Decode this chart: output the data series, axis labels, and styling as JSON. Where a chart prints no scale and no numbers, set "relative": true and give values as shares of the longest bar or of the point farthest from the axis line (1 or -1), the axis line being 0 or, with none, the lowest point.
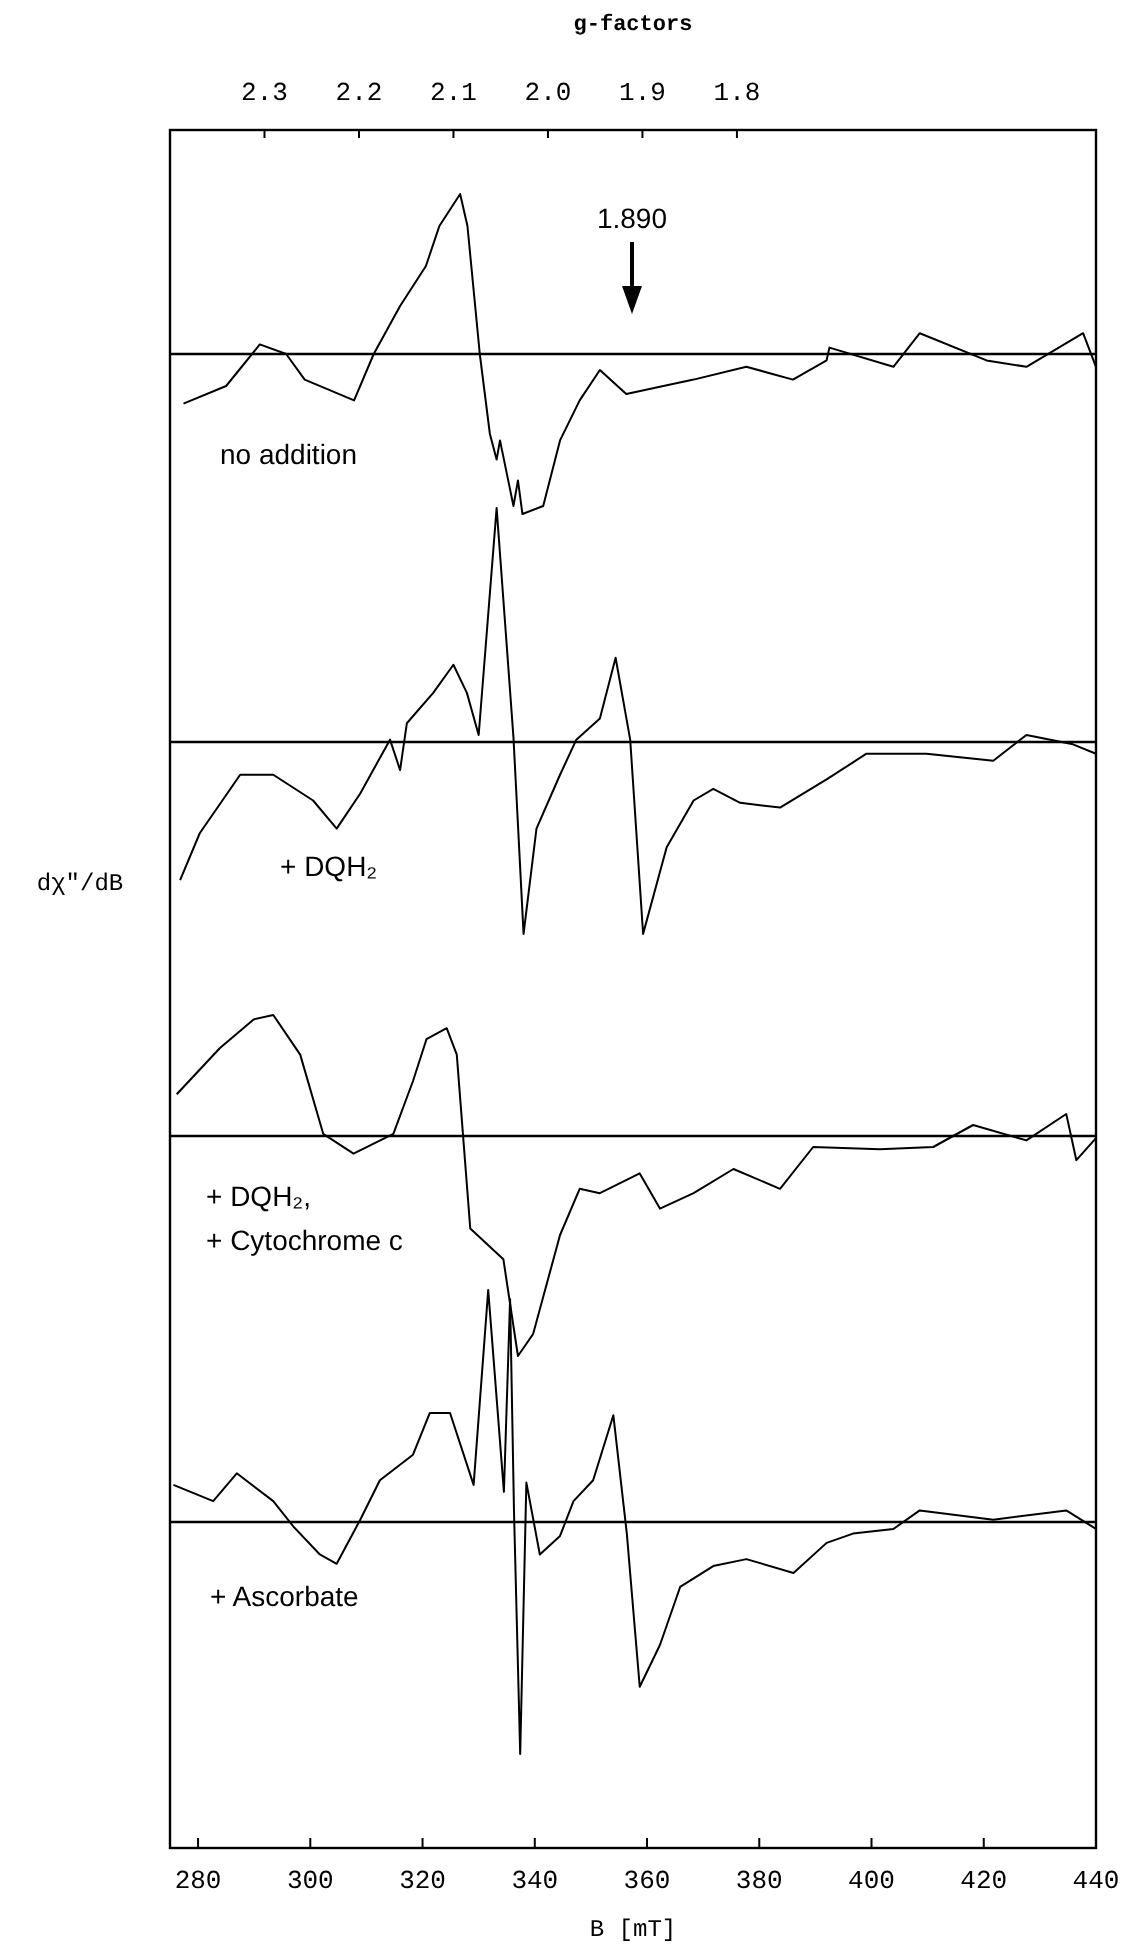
{
  "chart_data": [
    {
      "type": "line",
      "relative": true,
      "x2label": "g-factors",
      "x2lim": [
        2.4,
        1.42
      ],
      "x2ticks": [
        2.3,
        2.2,
        2.1,
        {
          "value": 2,
          "label": "2.0"
        },
        1.9,
        1.8
      ],
      "xlim": [
        275,
        440
      ],
      "tick_labels": "x",
      "annotations": [
        "1.890"
      ],
      "ref_lines": [
        {
          "axis": "y",
          "value": 0
        }
      ],
      "x": [
        277.4,
        285,
        291,
        295.7,
        299,
        307.8,
        311.3,
        316,
        320.6,
        323,
        326.7,
        328,
        330.2,
        332,
        333.2,
        333.8,
        336.2,
        337,
        337.8,
        341.5,
        344.5,
        348,
        351.6,
        356.3,
        368.3,
        377.7,
        386,
        392,
        392.5,
        403.9,
        408.6,
        420.5,
        427.6,
        437.7,
        440
      ],
      "series": [
        {
          "name": "no addition",
          "color": "#000000",
          "values": [
            -0.31,
            -0.2,
            0.06,
            0,
            -0.16,
            -0.29,
            0,
            0.3,
            0.55,
            0.8,
            1,
            0.8,
            0,
            -0.5,
            -0.66,
            -0.54,
            -0.95,
            -0.79,
            -1,
            -0.95,
            -0.54,
            -0.29,
            -0.1,
            -0.25,
            -0.16,
            -0.08,
            -0.16,
            -0.04,
            0.04,
            -0.08,
            0.13,
            -0.04,
            -0.08,
            0.13,
            -0.08
          ]
        }
      ]
    },
    {
      "type": "line",
      "relative": true,
      "xlim": [
        275,
        440
      ],
      "tick_labels": false,
      "ylabel": "dχ″/dB",
      "ref_lines": [
        {
          "axis": "y",
          "value": 0
        }
      ],
      "x": [
        276.8,
        280.3,
        287.5,
        293.4,
        300.5,
        304.7,
        308.9,
        314.2,
        316,
        317.2,
        321.9,
        325.5,
        327.9,
        330,
        333.2,
        336.2,
        338,
        340.3,
        344.5,
        347.4,
        351.6,
        354.4,
        357,
        359.3,
        363.5,
        368.3,
        371.8,
        376.6,
        383.7,
        392,
        399.1,
        409.8,
        421.7,
        427.6,
        435.9,
        440
      ],
      "series": [
        {
          "name": "+ DQH₂",
          "color": "#000000",
          "values": [
            -0.59,
            -0.39,
            -0.14,
            -0.14,
            -0.25,
            -0.37,
            -0.22,
            0.01,
            -0.12,
            0.08,
            0.21,
            0.33,
            0.21,
            0.03,
            1,
            0.02,
            -0.82,
            -0.37,
            -0.14,
            0.01,
            0.1,
            0.36,
            0.01,
            -0.82,
            -0.45,
            -0.25,
            -0.2,
            -0.26,
            -0.28,
            -0.16,
            -0.05,
            -0.05,
            -0.08,
            0.03,
            -0.01,
            -0.05
          ]
        }
      ]
    },
    {
      "type": "line",
      "relative": true,
      "xlim": [
        275,
        440
      ],
      "tick_labels": false,
      "ref_lines": [
        {
          "axis": "y",
          "value": 0
        }
      ],
      "x": [
        276.2,
        283.9,
        289.9,
        293.4,
        298.2,
        302.3,
        307.7,
        314.8,
        318.3,
        320.7,
        324.3,
        326.1,
        328.5,
        334.4,
        337,
        339.7,
        344.5,
        348,
        351.6,
        358.7,
        362.3,
        368.3,
        375.4,
        383.7,
        389.6,
        401.5,
        411,
        418.1,
        427.6,
        434.7,
        436.5,
        440
      ],
      "series": [
        {
          "name": "+ DQH₂,\n+ Cytochrome c",
          "color": "#000000",
          "values": [
            0.19,
            0.4,
            0.53,
            0.55,
            0.37,
            0.01,
            -0.08,
            0.01,
            0.25,
            0.44,
            0.49,
            0.37,
            -0.42,
            -0.56,
            -1,
            -0.9,
            -0.45,
            -0.24,
            -0.26,
            -0.17,
            -0.33,
            -0.26,
            -0.15,
            -0.24,
            -0.05,
            -0.06,
            -0.05,
            0.05,
            -0.02,
            0.1,
            -0.11,
            -0.01
          ]
        }
      ]
    },
    {
      "type": "line",
      "relative": true,
      "xlim": [
        275,
        440
      ],
      "xlabel": "B [mT]",
      "tick_labels": "x",
      "xticks": [
        280,
        300,
        320,
        340,
        360,
        380,
        400,
        420,
        440
      ],
      "ref_lines": [
        {
          "axis": "y",
          "value": 0
        }
      ],
      "x": [
        275.6,
        282.7,
        286.9,
        293.4,
        297,
        301.7,
        304.7,
        308.9,
        312.4,
        318.3,
        321.3,
        324.9,
        329.1,
        331.7,
        334.5,
        335.6,
        336.3,
        337.4,
        338.5,
        340.9,
        344.5,
        346.9,
        350.4,
        354,
        356.4,
        358.7,
        362.3,
        365.9,
        371.8,
        377.7,
        386.1,
        392,
        396.7,
        403.9,
        408.6,
        421.7,
        434.7,
        440
      ],
      "series": [
        {
          "name": "+ Ascorbate",
          "color": "#000000",
          "values": [
            0.16,
            0.09,
            0.21,
            0.09,
            -0.02,
            -0.14,
            -0.18,
            0.01,
            0.18,
            0.29,
            0.47,
            0.47,
            0.16,
            1,
            0.13,
            0.96,
            0.04,
            -1,
            0.17,
            -0.14,
            -0.06,
            0.09,
            0.18,
            0.46,
            -0.05,
            -0.71,
            -0.53,
            -0.28,
            -0.19,
            -0.16,
            -0.22,
            -0.09,
            -0.05,
            -0.03,
            0.05,
            0.01,
            0.05,
            -0.03
          ]
        }
      ]
    }
  ]
}
